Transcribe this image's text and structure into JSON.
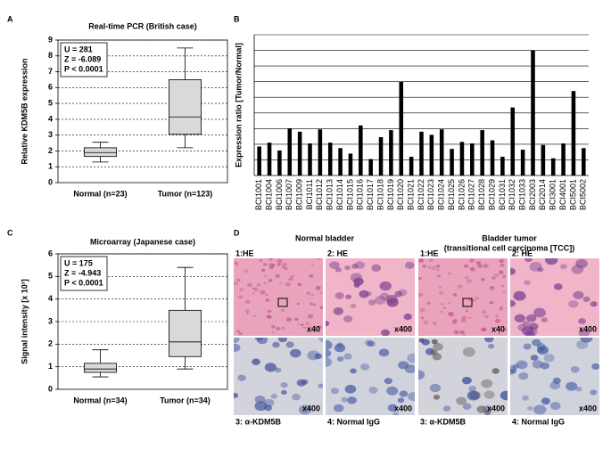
{
  "chart_data": [
    {
      "type": "box",
      "panel": "A",
      "title": "Real-time PCR (British case)",
      "y_label": "Relative KDM5B expression",
      "categories": [
        "Normal (n=23)",
        "Tumor (n=123)"
      ],
      "boxes": [
        {
          "low": 1.3,
          "q1": 1.65,
          "median": 1.9,
          "q3": 2.2,
          "high": 2.55
        },
        {
          "low": 2.2,
          "q1": 3.05,
          "median": 4.15,
          "q3": 6.5,
          "high": 8.5
        }
      ],
      "stats_text": [
        "U = 281",
        "Z = -6.089",
        "P < 0.0001"
      ],
      "color": "#d9d9d9",
      "ylim": [
        0,
        9
      ],
      "yticks": [
        0,
        1,
        2,
        3,
        4,
        5,
        6,
        7,
        8,
        9
      ],
      "grid": true
    },
    {
      "type": "bar",
      "panel": "B",
      "y_label": "Expression ratio [Tumor/Normal]",
      "categories": [
        "BCI1001",
        "BCI1004",
        "BCI1006",
        "BCI1007",
        "BCI1009",
        "BCI1011",
        "BCI1012",
        "BCI1013",
        "BCI1014",
        "BCI1015",
        "BCI1016",
        "BCI1017",
        "BCI1018",
        "BCI1019",
        "BCI1020",
        "BCI1021",
        "BCI1022",
        "BCI1023",
        "BCI1024",
        "BCI1025",
        "BCI1026",
        "BCI1027",
        "BCI1028",
        "BCI1029",
        "BCI1031",
        "BCI1032",
        "BCI1033",
        "BCI2003",
        "BCI2014",
        "BCI3001",
        "BCI4001",
        "BCI5001",
        "BCI5002"
      ],
      "values": [
        1.85,
        2.1,
        1.6,
        3.0,
        2.8,
        2.05,
        2.95,
        2.1,
        1.75,
        1.4,
        3.2,
        1.05,
        2.45,
        2.9,
        6.0,
        1.2,
        2.8,
        2.6,
        2.95,
        1.7,
        2.15,
        2.05,
        2.9,
        2.25,
        1.2,
        4.35,
        1.65,
        8.0,
        1.95,
        1.1,
        2.05,
        5.4,
        1.75
      ],
      "color": "#000000",
      "ylim": [
        0,
        9
      ],
      "yticks": [
        0,
        1,
        2,
        3,
        4,
        5,
        6,
        7,
        8,
        9
      ],
      "grid": true,
      "tick_labels": false
    },
    {
      "type": "box",
      "panel": "C",
      "title": "Microarray (Japanese case)",
      "y_label": "Signal intensity [x 10³]",
      "categories": [
        "Normal (n=34)",
        "Tumor (n=34)"
      ],
      "boxes": [
        {
          "low": 0.55,
          "q1": 0.75,
          "median": 0.9,
          "q3": 1.15,
          "high": 1.75
        },
        {
          "low": 0.9,
          "q1": 1.45,
          "median": 2.1,
          "q3": 3.5,
          "high": 5.4
        }
      ],
      "stats_text": [
        "U = 175",
        "Z = -4.943",
        "P < 0.0001"
      ],
      "color": "#d9d9d9",
      "ylim": [
        0,
        6
      ],
      "yticks": [
        0,
        1,
        2,
        3,
        4,
        5,
        6
      ],
      "grid": true
    }
  ],
  "panel_d": {
    "label": "D",
    "groups": [
      {
        "title": [
          "Normal bladder"
        ],
        "tiles": [
          {
            "label": "1:HE",
            "magnification": "x40"
          },
          {
            "label": "2: HE",
            "magnification": "x400"
          },
          {
            "label": "3: α-KDM5B",
            "magnification": "x400"
          },
          {
            "label": "4: Normal IgG",
            "magnification": "x400"
          }
        ]
      },
      {
        "title": [
          "Bladder tumor",
          "(transitional cell carcinoma [TCC])"
        ],
        "tiles": [
          {
            "label": "1:HE",
            "magnification": "x40"
          },
          {
            "label": "2: HE",
            "magnification": "x400"
          },
          {
            "label": "3: α-KDM5B",
            "magnification": "x400"
          },
          {
            "label": "4: Normal IgG",
            "magnification": "x400"
          }
        ]
      }
    ]
  }
}
